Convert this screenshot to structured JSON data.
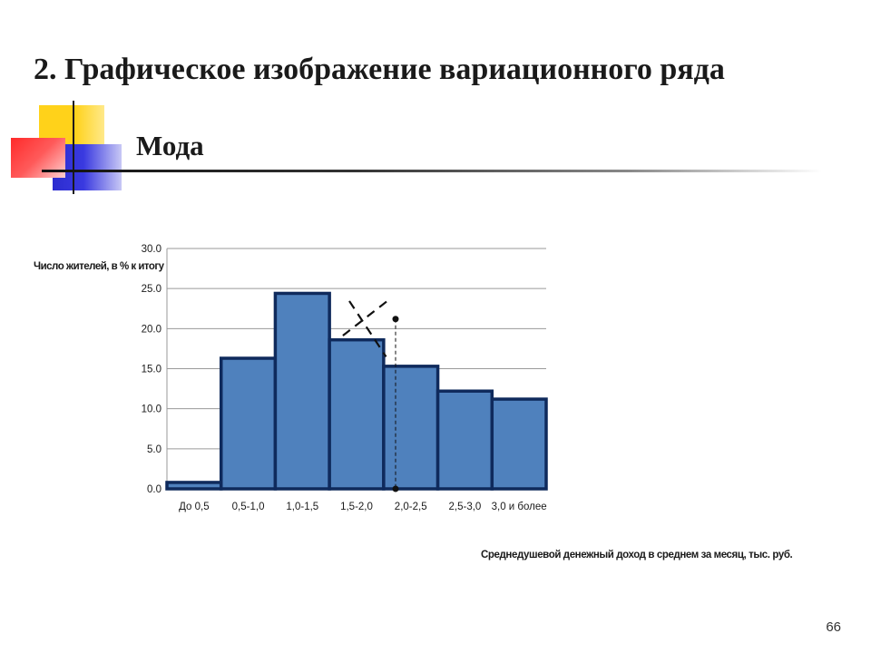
{
  "slide": {
    "title": "2. Графическое изображение вариационного ряда",
    "subtitle": "Мода",
    "page_number": "66"
  },
  "colors": {
    "bar_fill": "#4f81bd",
    "bar_stroke": "#0f2a5c",
    "gridline": "#9a9a9a",
    "text": "#1a1a1a"
  },
  "chart_data": {
    "type": "bar",
    "title": "",
    "ylabel": "Число жителей, в % к итогу",
    "xlabel": "Среднедушевой денежный доход в среднем за месяц, тыс. руб.",
    "categories": [
      "До 0,5",
      "0,5-1,0",
      "1,0-1,5",
      "1,5-2,0",
      "2,0-2,5",
      "2,5-3,0",
      "3,0 и более"
    ],
    "values": [
      0.8,
      16.3,
      24.4,
      18.6,
      15.3,
      12.2,
      11.2
    ],
    "ylim": [
      0,
      30
    ],
    "yticks": [
      "0.0",
      "5.0",
      "10.0",
      "15.0",
      "20.0",
      "25.0",
      "30.0"
    ],
    "grid": true,
    "annotations": {
      "mode_intersection": {
        "x_bin_position": 4.22,
        "y": 21.2
      },
      "mode_marker_x": 4.22
    }
  }
}
